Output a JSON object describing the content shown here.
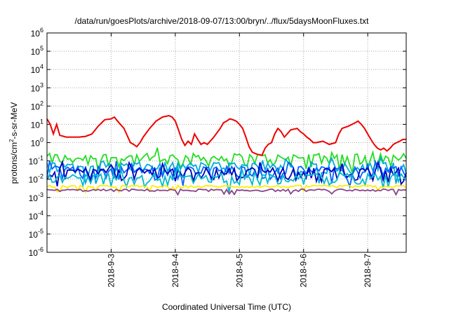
{
  "chart_data": {
    "type": "line",
    "title": "/data/run/goesPlots/archive/2018-09-07/13:00/bryn/../flux/5daysMoonFluxes.txt",
    "xlabel": "Coordinated Universal Time (UTC)",
    "ylabel": {
      "prefix": "protons/cm",
      "sup": "2",
      "suffix": "-s-sr-MeV"
    },
    "ylog": true,
    "ylim_exp": [
      -6,
      6
    ],
    "ytick_exps": [
      -6,
      -5,
      -4,
      -3,
      -2,
      -1,
      0,
      1,
      2,
      3,
      4,
      5,
      6
    ],
    "ytick_base": "10",
    "xlim_days": [
      2.0,
      7.6
    ],
    "xticks": [
      {
        "day": 3,
        "label": "2018-9-3"
      },
      {
        "day": 4,
        "label": "2018-9-4"
      },
      {
        "day": 5,
        "label": "2018-9-5"
      },
      {
        "day": 6,
        "label": "2018-9-6"
      },
      {
        "day": 7,
        "label": "2018-9-7"
      }
    ],
    "grid": true,
    "series": [
      {
        "color": "#ee0000",
        "x": [
          2.0,
          2.05,
          2.1,
          2.15,
          2.2,
          2.3,
          2.4,
          2.5,
          2.6,
          2.7,
          2.8,
          2.85,
          2.9,
          3.0,
          3.05,
          3.1,
          3.2,
          3.3,
          3.35,
          3.4,
          3.45,
          3.5,
          3.6,
          3.7,
          3.8,
          3.9,
          3.95,
          4.0,
          4.05,
          4.1,
          4.15,
          4.2,
          4.25,
          4.3,
          4.35,
          4.4,
          4.45,
          4.5,
          4.6,
          4.7,
          4.75,
          4.8,
          4.85,
          4.9,
          4.95,
          5.0,
          5.05,
          5.1,
          5.15,
          5.2,
          5.25,
          5.3,
          5.35,
          5.4,
          5.45,
          5.5,
          5.55,
          5.6,
          5.65,
          5.7,
          5.8,
          5.9,
          5.95,
          6.0,
          6.05,
          6.1,
          6.15,
          6.2,
          6.3,
          6.4,
          6.5,
          6.55,
          6.6,
          6.7,
          6.8,
          6.85,
          6.9,
          6.95,
          7.0,
          7.05,
          7.1,
          7.15,
          7.2,
          7.25,
          7.3,
          7.35,
          7.4,
          7.45,
          7.5,
          7.55,
          7.6
        ],
        "y": [
          20,
          10,
          3,
          10,
          2.5,
          2,
          2,
          2,
          2.2,
          3,
          8,
          12,
          18,
          20,
          25,
          15,
          6,
          1,
          0.8,
          0.6,
          1,
          2,
          6,
          15,
          25,
          30,
          25,
          15,
          5,
          1.5,
          0.7,
          1.2,
          0.8,
          3,
          1.5,
          0.8,
          1,
          0.8,
          2,
          6,
          12,
          15,
          20,
          18,
          15,
          10,
          6,
          2,
          0.6,
          0.3,
          0.25,
          0.22,
          0.2,
          0.5,
          0.8,
          1,
          3,
          6,
          4,
          2,
          5,
          6,
          4,
          3,
          2,
          1.5,
          1,
          1,
          1.2,
          0.8,
          1,
          3,
          6,
          8,
          12,
          15,
          10,
          6,
          3,
          1.5,
          0.8,
          0.5,
          0.4,
          0.5,
          0.35,
          0.5,
          0.8,
          1,
          1.2,
          1.5,
          1.5
        ]
      }
    ],
    "band_series": [
      {
        "color": "#22dd22",
        "center": 0.15
      },
      {
        "color": "#00aadd",
        "center": 0.05
      },
      {
        "color": "#0066ff",
        "center": 0.03
      },
      {
        "color": "#0000bb",
        "center": 0.025
      },
      {
        "color": "#00bbcc",
        "center": 0.012
      },
      {
        "color": "#ffee00",
        "center": 0.004
      },
      {
        "color": "#884488",
        "center": 0.0025
      }
    ]
  }
}
